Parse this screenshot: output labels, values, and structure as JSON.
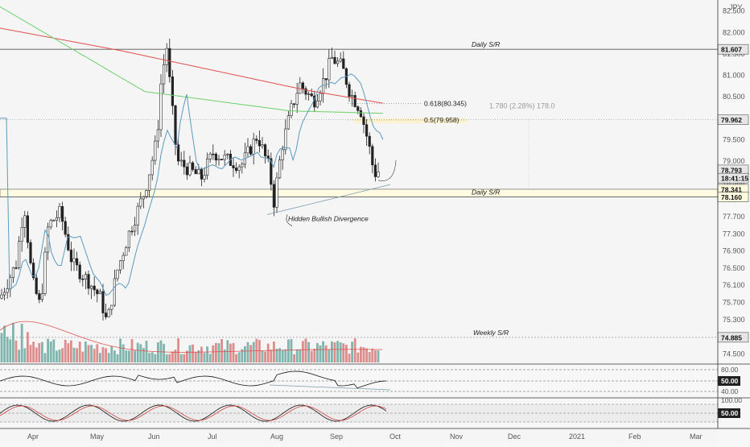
{
  "chart_data": {
    "type": "candlestick",
    "currency": "JPY",
    "y_ticks": [
      "82.500",
      "82.000",
      "81.500",
      "81.000",
      "80.500",
      "80.000",
      "79.500",
      "79.000",
      "78.500",
      "78.100",
      "77.700",
      "77.300",
      "76.900",
      "76.500",
      "76.100",
      "75.700",
      "75.300",
      "74.900",
      "74.500"
    ],
    "x_ticks": [
      "Apr",
      "May",
      "Jun",
      "Jul",
      "Aug",
      "Sep",
      "Oct",
      "Nov",
      "Dec",
      "2021",
      "Feb",
      "Mar"
    ],
    "price_labels": [
      {
        "value": "81.607",
        "color": "#222222"
      },
      {
        "value": "79.962",
        "color": "#222222"
      },
      {
        "value": "78.793",
        "color": "#222222"
      },
      {
        "value": "18:41:15",
        "color": "#222222"
      },
      {
        "value": "78.341",
        "color": "#222222"
      },
      {
        "value": "78.160",
        "color": "#222222"
      },
      {
        "value": "74.885",
        "color": "#222222"
      }
    ],
    "levels": [
      {
        "label": "Daily S/R",
        "price": 81.607
      },
      {
        "label": "Daily S/R",
        "price": 78.16
      },
      {
        "label": "Weekly S/R",
        "price": 74.885
      }
    ],
    "fib_levels": [
      {
        "label": "0.618(80.345)",
        "price": 80.345
      },
      {
        "label": "0.5(79.958)",
        "price": 79.958
      }
    ],
    "measure_text": "1.780 (2.28%) 178.0",
    "annotation": "Hidden Bullish Divergence",
    "rsi_labels": [
      "80.00",
      "50.00",
      "40.00"
    ],
    "stoch_labels": [
      "100.00",
      "50.00"
    ],
    "colors": {
      "up": "#26a69a",
      "down": "#222222",
      "ma_red": "#e05050",
      "ma_green": "#6bd06b",
      "ma_blue": "#5b9bbf",
      "volume_up": "#6aa9a0",
      "volume_down": "#d97a7a"
    }
  }
}
